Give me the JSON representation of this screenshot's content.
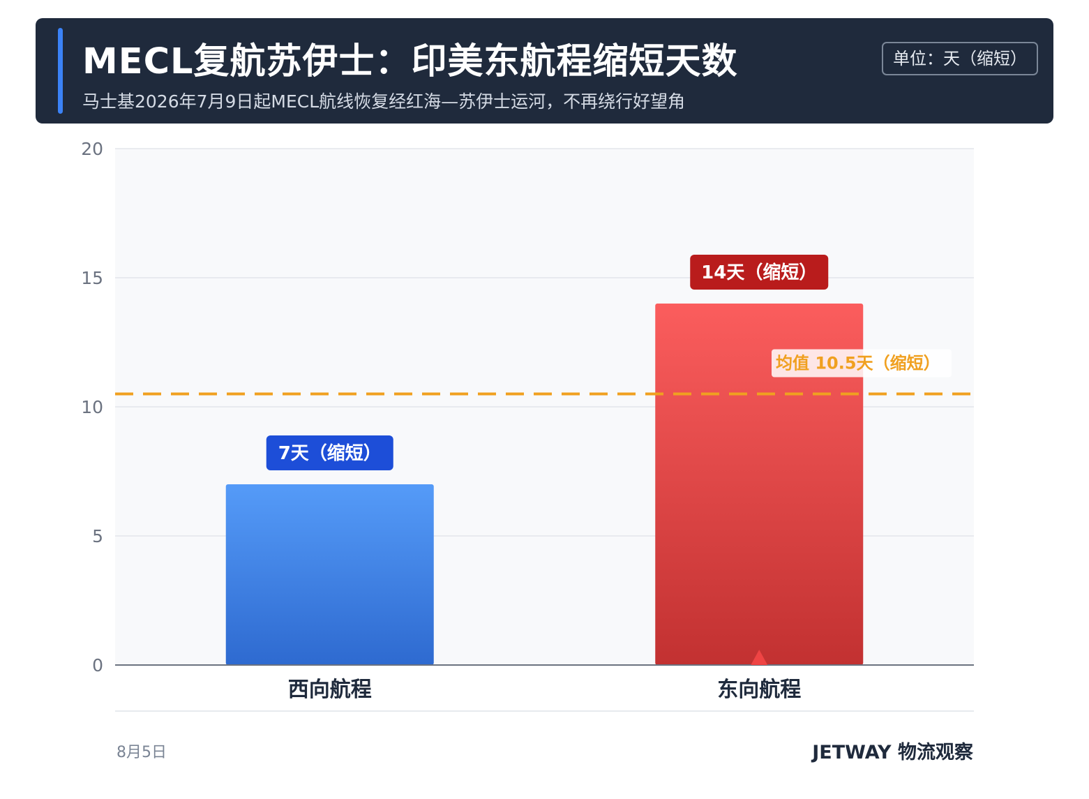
{
  "header": {
    "title": "MECL复航苏伊士：印美东航程缩短天数",
    "subtitle": "马士基2026年7月9日起MECL航线恢复经红海—苏伊士运河，不再绕行好望角",
    "unit": "单位：天（缩短）"
  },
  "colors": {
    "header_bg": "#1f2a3c",
    "accent": "#3b82f6",
    "west_bar_top": "#559bf8",
    "west_bar_bottom": "#2e6ad0",
    "west_label_bg": "#1d4ed8",
    "east_bar_top": "#fb5d5d",
    "east_bar_bottom": "#c23131",
    "east_label_bg": "#b91c1c",
    "mean_line": "#f0a020"
  },
  "chart_data": {
    "type": "bar",
    "categories": [
      "西向航程",
      "东向航程"
    ],
    "values": [
      7,
      14
    ],
    "data_labels": [
      "7天（缩短）",
      "14天（缩短）"
    ],
    "ylim": [
      0,
      20
    ],
    "yticks": [
      "0",
      "5",
      "10",
      "15",
      "20"
    ],
    "ytick_values": [
      0,
      5,
      10,
      15,
      20
    ],
    "grid": true,
    "reference_line": {
      "value": 10.5,
      "label": "均值 10.5天（缩短）"
    },
    "highlight_marker": {
      "category": "东向航程",
      "shape": "triangle-up-icon"
    }
  },
  "footer": {
    "date": "8月5日",
    "brand": "JETWAY 物流观察"
  }
}
